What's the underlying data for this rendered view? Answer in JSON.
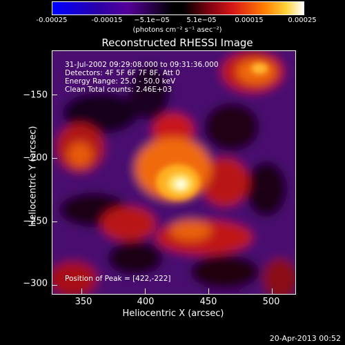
{
  "colorbar": {
    "tick_labels": [
      "-0.00025",
      "-0.00015",
      "−5.1e−05",
      "5.1e−05",
      "0.00015",
      "0.00025"
    ],
    "units": "(photons cm⁻² s⁻¹ asec⁻²)"
  },
  "image": {
    "title": "Reconstructed RHESSI Image",
    "time_range": "31-Jul-2002 09:29:08.000 to 09:31:36.000",
    "detectors": "Detectors: 4F 5F 6F 7F 8F, Att 0",
    "energy_range": "Energy Range: 25.0 - 50.0 keV",
    "algorithm_counts": "Clean    Total counts: 2.46E+03",
    "peak": "Position of Peak = [422,-222]"
  },
  "axes": {
    "xlabel": "Heliocentric X (arcsec)",
    "ylabel": "Heliocentric Y (arcsec)",
    "xticks": [
      "350",
      "400",
      "450",
      "500"
    ],
    "yticks": [
      "−150",
      "−200",
      "−250",
      "−300"
    ]
  },
  "footer": {
    "date": "20-Apr-2013 00:52"
  }
}
